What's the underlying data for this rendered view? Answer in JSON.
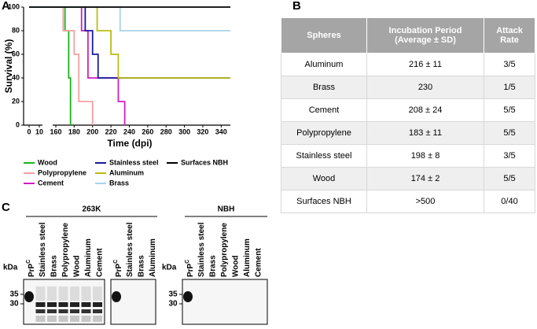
{
  "chart_data": {
    "type": "line",
    "panel_label": "A",
    "ylabel": "Survival (%)",
    "xlabel": "Time (dpi)",
    "xlim": [
      0,
      350
    ],
    "xbreak": [
      10,
      160
    ],
    "xticks": [
      0,
      10,
      160,
      180,
      200,
      220,
      240,
      260,
      280,
      300,
      320,
      340
    ],
    "ylim": [
      0,
      100
    ],
    "yticks": [
      0,
      20,
      40,
      60,
      80,
      100
    ],
    "series": [
      {
        "name": "Wood",
        "color": "#1db31d",
        "x": [
          0,
          170,
          174,
          176
        ],
        "values": [
          100,
          80,
          40,
          0
        ]
      },
      {
        "name": "Polypropylene",
        "color": "#f2a0a0",
        "x": [
          0,
          168,
          180,
          185,
          200
        ],
        "values": [
          100,
          80,
          60,
          20,
          0
        ]
      },
      {
        "name": "Cement",
        "color": "#d21fc0",
        "x": [
          0,
          188,
          195,
          228,
          235
        ],
        "values": [
          100,
          80,
          40,
          20,
          0
        ]
      },
      {
        "name": "Stainless steel",
        "color": "#1a1a9a",
        "x": [
          0,
          192,
          200,
          206,
          350
        ],
        "values": [
          100,
          80,
          60,
          40,
          40
        ]
      },
      {
        "name": "Aluminum",
        "color": "#bcbc14",
        "x": [
          0,
          205,
          220,
          228,
          350
        ],
        "values": [
          100,
          80,
          60,
          40,
          40
        ]
      },
      {
        "name": "Brass",
        "color": "#a8d4ea",
        "x": [
          0,
          230,
          350
        ],
        "values": [
          100,
          80,
          80
        ]
      },
      {
        "name": "Surfaces NBH",
        "color": "#000000",
        "x": [
          0,
          350
        ],
        "values": [
          100,
          100
        ]
      }
    ]
  },
  "table": {
    "panel_label": "B",
    "header": [
      "Spheres",
      "Incubation Period (Average ± SD)",
      "Attack Rate"
    ],
    "rows": [
      [
        "Aluminum",
        "216 ± 11",
        "3/5"
      ],
      [
        "Brass",
        "230",
        "1/5"
      ],
      [
        "Cement",
        "208 ± 24",
        "5/5"
      ],
      [
        "Polypropylene",
        "183 ± 11",
        "5/5"
      ],
      [
        "Stainless steel",
        "198 ± 8",
        "3/5"
      ],
      [
        "Wood",
        "174 ± 2",
        "5/5"
      ],
      [
        "Surfaces NBH",
        ">500",
        "0/40"
      ]
    ]
  },
  "blots": {
    "panel_label": "C",
    "groups": [
      "263K",
      "NBH"
    ],
    "unit": "kDa",
    "markers": [
      "35",
      "30"
    ],
    "prp": "PrP",
    "prp_sup": "C",
    "lanes": [
      [
        "Stainless steel",
        "Brass",
        "Polypropylene",
        "Wood",
        "Aluminum",
        "Cement"
      ],
      [
        "Stainless steel",
        "Brass",
        "Aluminum"
      ],
      [
        "Stainless steel",
        "Brass",
        "Polypropylene",
        "Wood",
        "Aluminum",
        "Cement"
      ]
    ]
  }
}
